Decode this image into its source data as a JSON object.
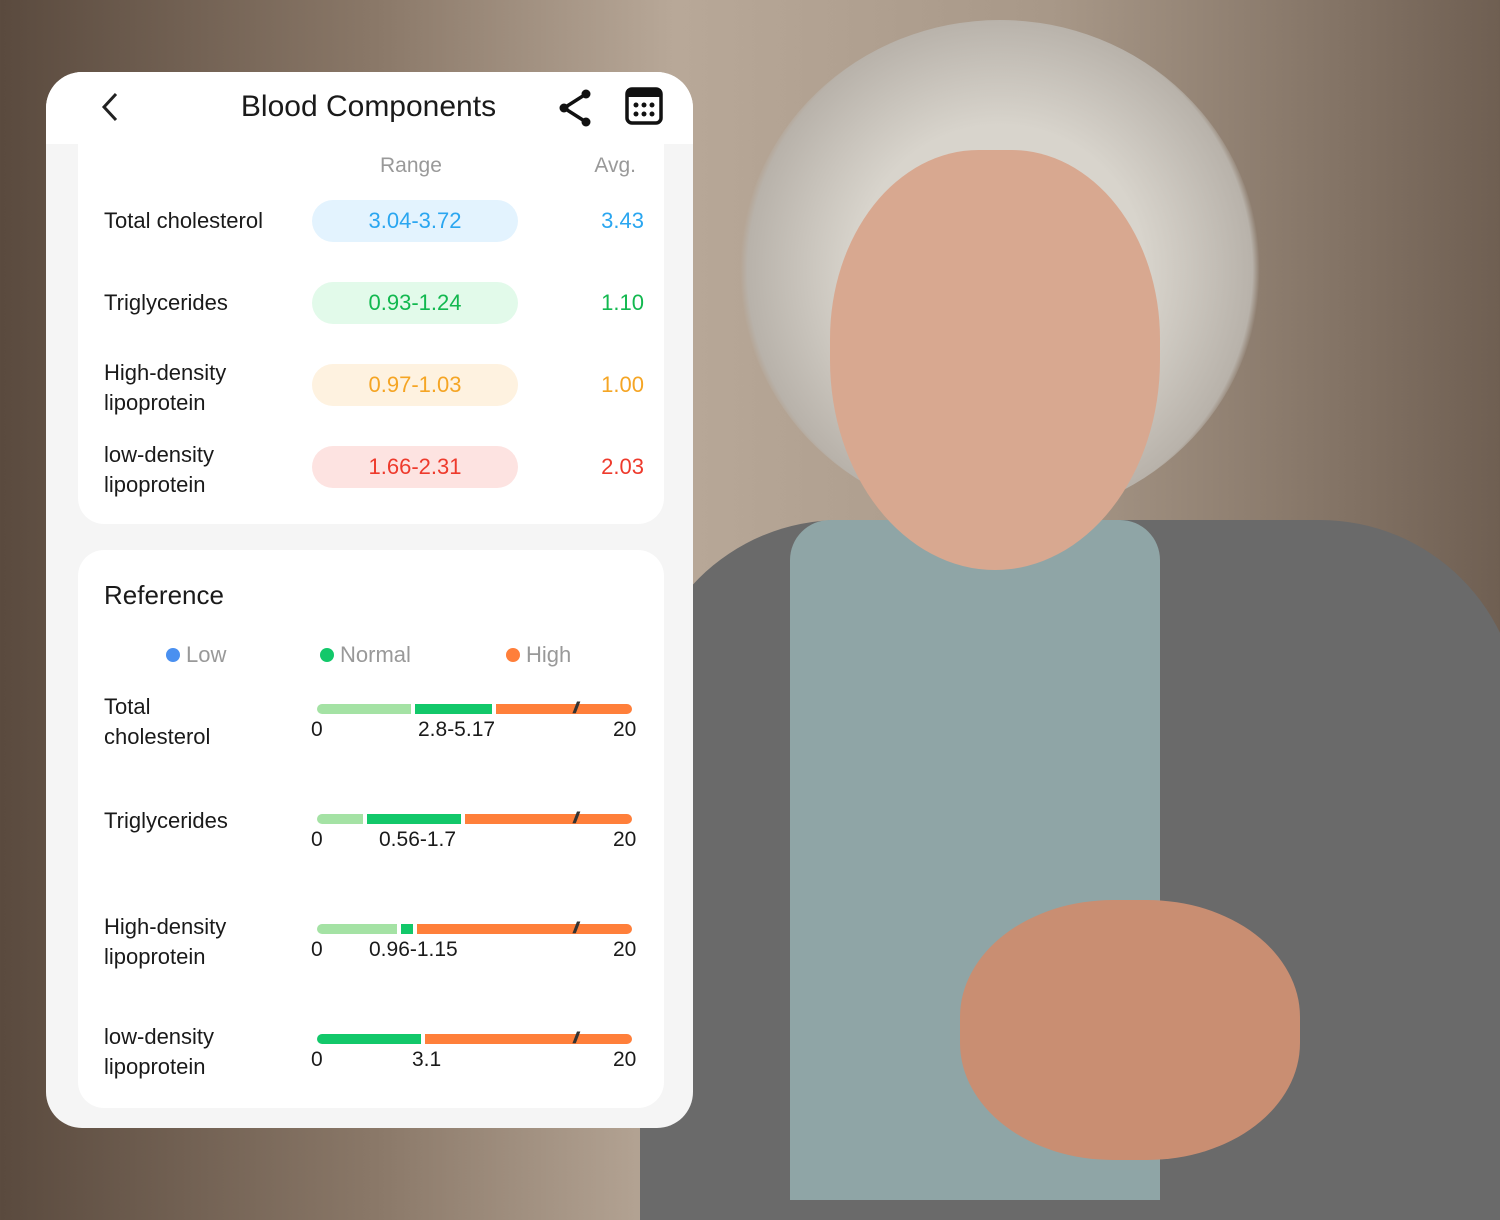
{
  "header": {
    "title": "Blood Components",
    "back_icon": "chevron-left-icon",
    "share_icon": "share-icon",
    "calendar_icon": "calendar-icon"
  },
  "summary": {
    "range_header": "Range",
    "avg_header": "Avg.",
    "rows": [
      {
        "label": "Total cholesterol",
        "range": "3.04-3.72",
        "avg": "3.43",
        "color": "#2aa6f0",
        "bg": "#e3f3fe"
      },
      {
        "label": "Triglycerides",
        "range": "0.93-1.24",
        "avg": "1.10",
        "color": "#12b84f",
        "bg": "#e2faea"
      },
      {
        "label": "High-density lipoprotein",
        "range": "0.97-1.03",
        "avg": "1.00",
        "color": "#f5a524",
        "bg": "#fef2e0"
      },
      {
        "label": "low-density lipoprotein",
        "range": "1.66-2.31",
        "avg": "2.03",
        "color": "#ee3a2c",
        "bg": "#fde3e1"
      }
    ]
  },
  "reference": {
    "title": "Reference",
    "legend": [
      {
        "label": "Low",
        "color": "#4a90f0"
      },
      {
        "label": "Normal",
        "color": "#12c86a"
      },
      {
        "label": "High",
        "color": "#ff7f3a"
      }
    ],
    "segment_colors": {
      "low": "#a4e2a4",
      "normal": "#12c86a",
      "high": "#ff7f3a"
    },
    "rows": [
      {
        "label": "Total cholesterol",
        "min": "0",
        "normal_range": "2.8-5.17",
        "max": "20"
      },
      {
        "label": "Triglycerides",
        "min": "0",
        "normal_range": "0.56-1.7",
        "max": "20"
      },
      {
        "label": "High-density lipoprotein",
        "min": "0",
        "normal_range": "0.96-1.15",
        "max": "20"
      },
      {
        "label": "low-density lipoprotein",
        "min": "0",
        "normal_range": "3.1",
        "max": "20"
      }
    ]
  }
}
